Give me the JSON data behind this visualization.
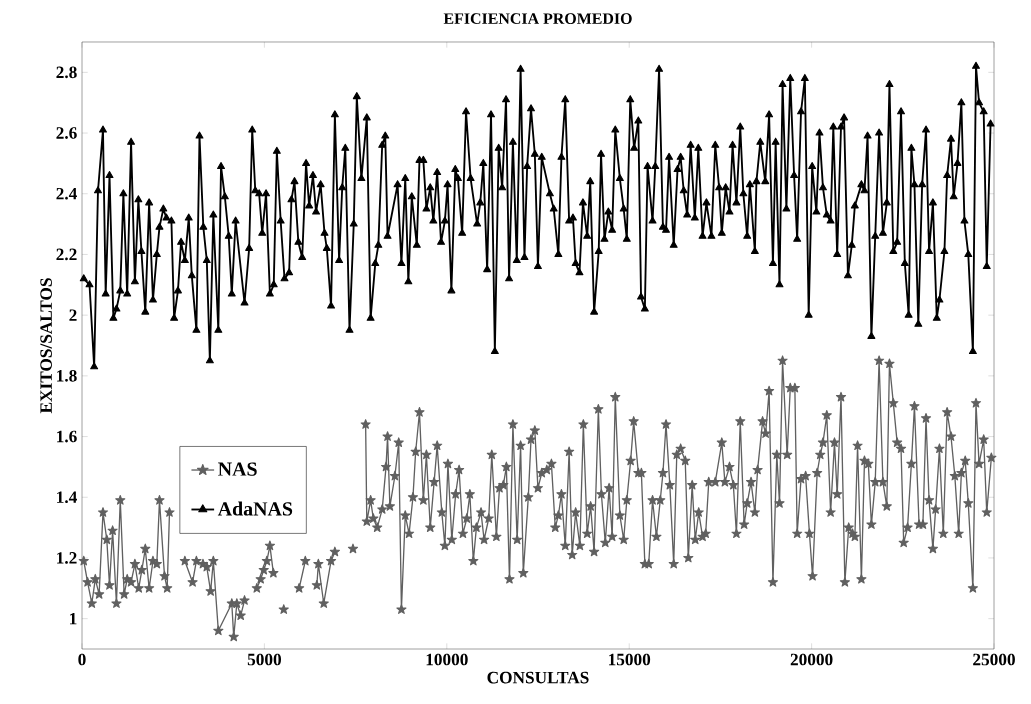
{
  "chart_data": {
    "type": "line",
    "title": "EFICIENCIA PROMEDIO",
    "xlabel": "CONSULTAS",
    "ylabel": "EXITOS/SALTOS",
    "xlim": [
      0,
      25000
    ],
    "ylim": [
      0.9,
      2.9
    ],
    "xticks": [
      0,
      5000,
      10000,
      15000,
      20000,
      25000
    ],
    "yticks": [
      1,
      1.2,
      1.4,
      1.6,
      1.8,
      2,
      2.2,
      2.4,
      2.6,
      2.8
    ],
    "legend": "left",
    "line_style": "solid",
    "series": [
      {
        "name": "NAS",
        "color": "#606060",
        "marker": "star",
        "x": [
          48,
          153,
          269,
          364,
          470,
          575,
          680,
          754,
          839,
          944,
          1049,
          1155,
          1239,
          1345,
          1450,
          1555,
          1640,
          1735,
          1840,
          1945,
          2051,
          2124,
          2262,
          2335,
          2398,
          2600,
          2820,
          3031,
          3136,
          3316,
          3421,
          3526,
          3600,
          3737,
          4106,
          4159,
          4244,
          4350,
          4455,
          4600,
          4792,
          4898,
          4982,
          5067,
          5151,
          5246,
          5400,
          5530,
          5750,
          5952,
          6121,
          6300,
          6437,
          6479,
          6627,
          6827,
          6932,
          7150,
          7428,
          7600,
          7775,
          7807,
          7912,
          7986,
          8092,
          8229,
          8334,
          8376,
          8440,
          8577,
          8682,
          8756,
          8861,
          8966,
          9072,
          9146,
          9251,
          9357,
          9441,
          9546,
          9652,
          9736,
          9863,
          9947,
          10031,
          10137,
          10242,
          10337,
          10442,
          10548,
          10632,
          10727,
          10811,
          10938,
          11022,
          11149,
          11233,
          11359,
          11444,
          11549,
          11633,
          11718,
          11812,
          11928,
          12023,
          12097,
          12234,
          12308,
          12413,
          12498,
          12603,
          12741,
          12868,
          12973,
          13058,
          13142,
          13247,
          13353,
          13437,
          13532,
          13648,
          13743,
          13848,
          13943,
          14038,
          14154,
          14238,
          14344,
          14449,
          14533,
          14618,
          14744,
          14849,
          14934,
          15039,
          15123,
          15250,
          15334,
          15429,
          15535,
          15640,
          15746,
          15851,
          15925,
          16009,
          16114,
          16220,
          16304,
          16410,
          16536,
          16620,
          16726,
          16810,
          16905,
          17011,
          17096,
          17180,
          17359,
          17538,
          17623,
          17749,
          17855,
          17939,
          18044,
          18150,
          18234,
          18340,
          18445,
          18519,
          18656,
          18740,
          18835,
          18940,
          19046,
          19120,
          19204,
          19330,
          19415,
          19541,
          19604,
          19710,
          19836,
          19941,
          20026,
          20152,
          20237,
          20311,
          20416,
          20521,
          20627,
          20701,
          20806,
          20912,
          21017,
          21122,
          21186,
          21260,
          21365,
          21449,
          21555,
          21639,
          21744,
          21850,
          21955,
          22061,
          22134,
          22240,
          22345,
          22451,
          22524,
          22630,
          22735,
          22819,
          22946,
          23051,
          23136,
          23220,
          23325,
          23399,
          23504,
          23610,
          23715,
          23821,
          23926,
          24032,
          24105,
          24211,
          24295,
          24421,
          24506,
          24590,
          24717,
          24801,
          24927
        ],
        "values": [
          1.19,
          1.12,
          1.05,
          1.13,
          1.08,
          1.35,
          1.26,
          1.11,
          1.29,
          1.05,
          1.39,
          1.08,
          1.13,
          1.12,
          1.18,
          1.1,
          1.16,
          1.23,
          1.1,
          1.19,
          1.18,
          1.39,
          1.14,
          1.1,
          1.35,
          null,
          1.19,
          1.12,
          1.19,
          1.18,
          1.17,
          1.09,
          1.19,
          0.96,
          1.05,
          0.94,
          1.05,
          1.01,
          1.06,
          null,
          1.1,
          1.13,
          1.16,
          1.19,
          1.24,
          1.15,
          null,
          1.03,
          null,
          1.1,
          1.19,
          null,
          1.11,
          1.18,
          1.05,
          1.19,
          1.22,
          null,
          1.23,
          null,
          1.64,
          1.32,
          1.39,
          1.33,
          1.3,
          1.36,
          1.5,
          1.6,
          1.37,
          1.47,
          1.58,
          1.03,
          1.34,
          1.28,
          1.4,
          1.55,
          1.68,
          1.39,
          1.54,
          1.3,
          1.45,
          1.57,
          1.35,
          1.24,
          1.51,
          1.26,
          1.41,
          1.49,
          1.28,
          1.33,
          1.41,
          1.19,
          1.3,
          1.35,
          1.26,
          1.33,
          1.54,
          1.27,
          1.43,
          1.44,
          1.5,
          1.13,
          1.64,
          1.26,
          1.57,
          1.15,
          1.4,
          1.59,
          1.62,
          1.43,
          1.48,
          1.49,
          1.51,
          1.3,
          1.34,
          1.41,
          1.24,
          1.55,
          1.21,
          1.35,
          1.24,
          1.64,
          1.28,
          1.37,
          1.22,
          1.69,
          1.41,
          1.25,
          1.43,
          1.27,
          1.73,
          1.34,
          1.26,
          1.39,
          1.52,
          1.65,
          1.48,
          1.48,
          1.18,
          1.18,
          1.39,
          1.27,
          1.39,
          1.48,
          1.64,
          1.44,
          1.18,
          1.54,
          1.56,
          1.52,
          1.2,
          1.44,
          1.26,
          1.35,
          1.27,
          1.28,
          1.45,
          1.45,
          1.58,
          1.45,
          1.5,
          1.44,
          1.28,
          1.65,
          1.31,
          1.38,
          1.45,
          1.35,
          1.49,
          1.65,
          1.61,
          1.75,
          1.12,
          1.54,
          1.38,
          1.85,
          1.54,
          1.76,
          1.76,
          1.28,
          1.46,
          1.47,
          1.28,
          1.14,
          1.48,
          1.54,
          1.58,
          1.67,
          1.35,
          1.58,
          1.41,
          1.73,
          1.12,
          1.3,
          1.28,
          1.27,
          1.57,
          1.13,
          1.52,
          1.51,
          1.31,
          1.45,
          1.85,
          1.45,
          1.37,
          1.84,
          1.71,
          1.58,
          1.56,
          1.25,
          1.3,
          1.51,
          1.7,
          1.31,
          1.31,
          1.66,
          1.39,
          1.23,
          1.36,
          1.56,
          1.28,
          1.68,
          1.6,
          1.47,
          1.28,
          1.48,
          1.52,
          1.38,
          1.1,
          1.71,
          1.51,
          1.59,
          1.35,
          1.53
        ]
      },
      {
        "name": "AdaNAS",
        "color": "#000000",
        "marker": "triangle",
        "x": [
          48,
          206,
          333,
          438,
          575,
          649,
          754,
          860,
          944,
          1049,
          1134,
          1239,
          1345,
          1450,
          1545,
          1629,
          1735,
          1840,
          1945,
          2051,
          2124,
          2230,
          2314,
          2451,
          2525,
          2630,
          2715,
          2820,
          2926,
          3010,
          3136,
          3221,
          3326,
          3421,
          3505,
          3600,
          3737,
          3811,
          3916,
          4022,
          4106,
          4211,
          4455,
          4582,
          4666,
          4750,
          4856,
          4940,
          5045,
          5151,
          5256,
          5341,
          5446,
          5551,
          5678,
          5741,
          5825,
          5931,
          6036,
          6142,
          6226,
          6331,
          6416,
          6542,
          6648,
          6711,
          6827,
          6932,
          7048,
          7133,
          7217,
          7333,
          7449,
          7533,
          7659,
          7807,
          7912,
          8039,
          8123,
          8229,
          8313,
          8376,
          8651,
          8756,
          8861,
          8946,
          9040,
          9178,
          9251,
          9357,
          9441,
          9546,
          9631,
          9736,
          9842,
          9947,
          10021,
          10126,
          10232,
          10305,
          10421,
          10527,
          10653,
          10832,
          10917,
          11001,
          11106,
          11212,
          11317,
          11422,
          11517,
          11623,
          11707,
          11812,
          11918,
          12023,
          12129,
          12202,
          12308,
          12413,
          12498,
          12603,
          12826,
          12931,
          13058,
          13142,
          13247,
          13353,
          13458,
          13532,
          13637,
          13732,
          13848,
          13932,
          14038,
          14164,
          14228,
          14322,
          14428,
          14533,
          14618,
          14744,
          14849,
          14934,
          15029,
          15134,
          15250,
          15324,
          15429,
          15503,
          15640,
          15714,
          15819,
          15925,
          16009,
          16093,
          16220,
          16325,
          16410,
          16494,
          16589,
          16684,
          16799,
          16894,
          17011,
          17117,
          17254,
          17359,
          17465,
          17538,
          17644,
          17749,
          17834,
          17939,
          18044,
          18129,
          18234,
          18308,
          18445,
          18487,
          18593,
          18729,
          18835,
          18940,
          19014,
          19120,
          19204,
          19309,
          19415,
          19520,
          19604,
          19710,
          19815,
          19920,
          20015,
          20131,
          20216,
          20311,
          20416,
          20521,
          20595,
          20701,
          20806,
          20890,
          20996,
          21101,
          21185,
          21365,
          21449,
          21534,
          21639,
          21744,
          21850,
          21955,
          22061,
          22134,
          22240,
          22345,
          22451,
          22556,
          22661,
          22735,
          22819,
          22925,
          23030,
          23136,
          23220,
          23325,
          23431,
          23504,
          23641,
          23715,
          23821,
          23894,
          23999,
          24105,
          24190,
          24295,
          24421,
          24506,
          24590,
          24717,
          24801,
          24906
        ],
        "values": [
          2.12,
          2.1,
          1.83,
          2.41,
          2.61,
          2.07,
          2.46,
          1.99,
          2.02,
          2.08,
          2.4,
          2.07,
          2.57,
          2.11,
          2.38,
          2.21,
          2.01,
          2.37,
          2.05,
          2.2,
          2.29,
          2.35,
          2.32,
          2.31,
          1.99,
          2.08,
          2.24,
          2.18,
          2.32,
          2.13,
          1.95,
          2.59,
          2.29,
          2.18,
          1.85,
          2.33,
          1.95,
          2.49,
          2.39,
          2.26,
          2.07,
          2.31,
          2.04,
          2.22,
          2.61,
          2.41,
          2.4,
          2.27,
          2.4,
          2.07,
          2.1,
          2.54,
          2.31,
          2.12,
          2.14,
          2.38,
          2.44,
          2.24,
          2.19,
          2.5,
          2.36,
          2.46,
          2.34,
          2.43,
          2.27,
          2.22,
          2.03,
          2.66,
          2.18,
          2.42,
          2.55,
          1.95,
          2.3,
          2.72,
          2.45,
          2.65,
          1.99,
          2.17,
          2.23,
          2.56,
          2.59,
          2.26,
          2.43,
          2.17,
          2.45,
          2.11,
          2.39,
          2.23,
          2.51,
          2.51,
          2.35,
          2.42,
          2.31,
          2.47,
          2.24,
          2.31,
          2.43,
          2.08,
          2.48,
          2.45,
          2.27,
          2.67,
          2.45,
          2.3,
          2.37,
          2.5,
          2.15,
          2.66,
          1.88,
          2.55,
          2.42,
          2.71,
          2.12,
          2.57,
          2.18,
          2.81,
          2.19,
          2.49,
          2.68,
          2.53,
          2.16,
          2.52,
          2.4,
          2.35,
          2.2,
          2.52,
          2.71,
          2.31,
          2.32,
          2.17,
          2.14,
          2.37,
          2.26,
          2.44,
          2.01,
          2.21,
          2.53,
          2.25,
          2.34,
          2.28,
          2.61,
          2.45,
          2.35,
          2.25,
          2.71,
          2.55,
          2.64,
          2.06,
          2.02,
          2.49,
          2.31,
          2.49,
          2.81,
          2.29,
          2.28,
          2.52,
          2.23,
          2.48,
          2.52,
          2.41,
          2.33,
          2.56,
          2.32,
          2.55,
          2.26,
          2.37,
          2.26,
          2.56,
          2.42,
          2.27,
          2.42,
          2.34,
          2.56,
          2.37,
          2.62,
          2.4,
          2.26,
          2.43,
          2.21,
          2.44,
          2.57,
          2.44,
          2.66,
          2.17,
          2.57,
          2.1,
          2.76,
          2.35,
          2.78,
          2.46,
          2.25,
          2.67,
          2.78,
          2.0,
          2.49,
          2.34,
          2.6,
          2.42,
          2.33,
          2.31,
          2.62,
          2.2,
          2.62,
          2.65,
          2.13,
          2.23,
          2.36,
          2.43,
          2.41,
          2.59,
          1.93,
          2.26,
          2.6,
          2.27,
          2.37,
          2.76,
          2.21,
          2.24,
          2.67,
          2.17,
          2.0,
          2.55,
          2.43,
          1.97,
          2.43,
          2.61,
          2.21,
          2.37,
          1.99,
          2.05,
          2.21,
          2.46,
          2.58,
          2.39,
          2.5,
          2.7,
          2.31,
          2.2,
          1.88,
          2.82,
          2.7,
          2.67,
          2.16,
          2.63
        ]
      }
    ]
  }
}
